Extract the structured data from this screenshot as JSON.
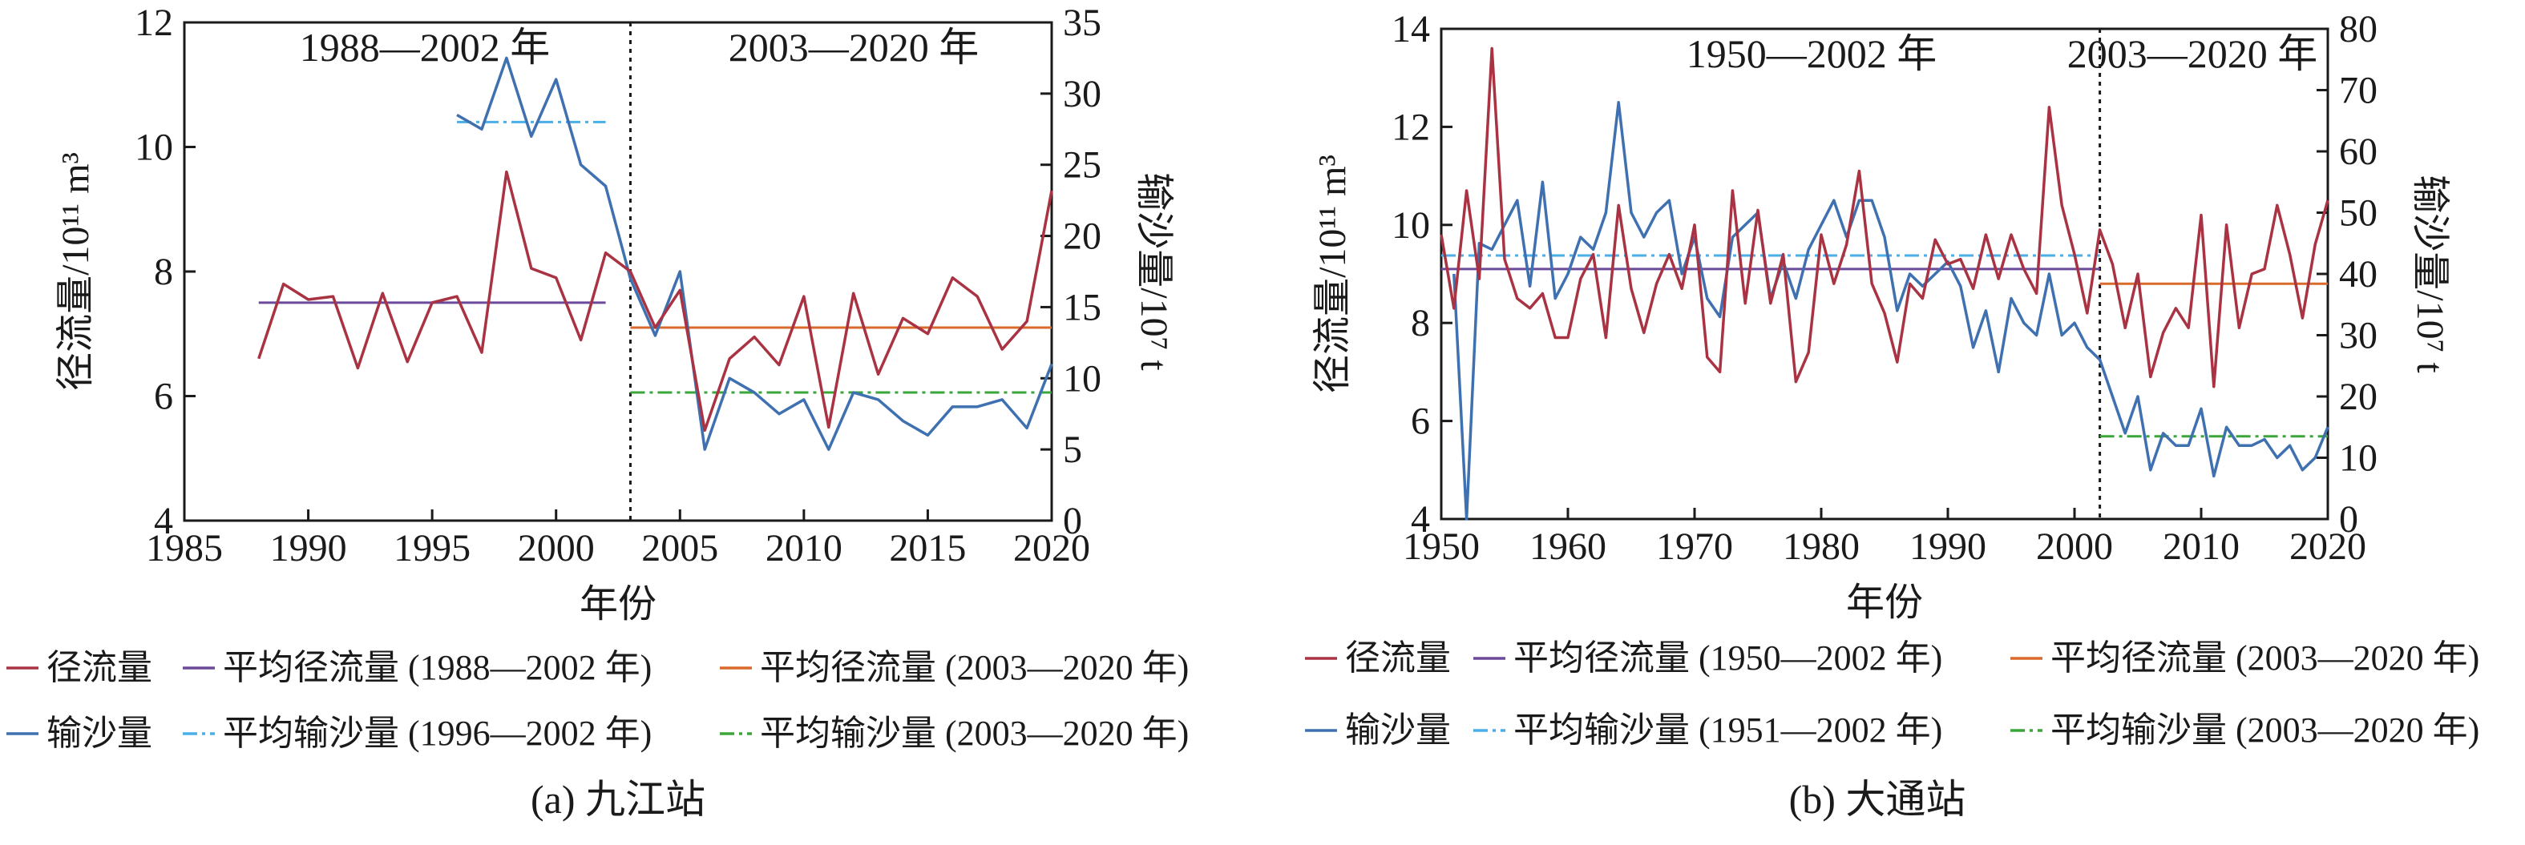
{
  "colors": {
    "runoff": "#a93342",
    "sediment": "#3f70b0",
    "mean_runoff_pre": "#6b4a9c",
    "mean_runoff_post": "#d96a2c",
    "mean_sed_pre": "#4aaee8",
    "mean_sed_post": "#3aa63a",
    "divider": "#1a1a1a"
  },
  "chart_data": [
    {
      "type": "line",
      "caption": "(a) 九江站",
      "xlabel": "年份",
      "ylabel_left": "径流量/10¹¹ m³",
      "ylabel_right": "输沙量/10⁷ t",
      "xlim": [
        1985,
        2020
      ],
      "xticks": [
        1985,
        1990,
        1995,
        2000,
        2005,
        2010,
        2015,
        2020
      ],
      "ylim_left": [
        4,
        12
      ],
      "yticks_left": [
        4,
        6,
        8,
        10,
        12
      ],
      "ylim_right": [
        0,
        35
      ],
      "yticks_right": [
        0,
        5,
        10,
        15,
        20,
        25,
        30,
        35
      ],
      "divider_x": 2003,
      "period_labels": [
        "1988—2002 年",
        "2003—2020 年"
      ],
      "runoff": {
        "name": "径流量",
        "x": [
          1988,
          1989,
          1990,
          1991,
          1992,
          1993,
          1994,
          1995,
          1996,
          1997,
          1998,
          1999,
          2000,
          2001,
          2002,
          2003,
          2004,
          2005,
          2006,
          2007,
          2008,
          2009,
          2010,
          2011,
          2012,
          2013,
          2014,
          2015,
          2016,
          2017,
          2018,
          2019,
          2020
        ],
        "y": [
          6.6,
          7.8,
          7.55,
          7.6,
          6.45,
          7.65,
          6.55,
          7.5,
          7.6,
          6.7,
          9.6,
          8.05,
          7.9,
          6.9,
          8.3,
          8.0,
          7.1,
          7.7,
          5.45,
          6.6,
          6.95,
          6.5,
          7.6,
          5.5,
          7.65,
          6.35,
          7.25,
          7.0,
          7.9,
          7.6,
          6.75,
          7.2,
          9.3
        ]
      },
      "sediment": {
        "name": "输沙量",
        "x": [
          1996,
          1997,
          1998,
          1999,
          2000,
          2001,
          2002,
          2003,
          2004,
          2005,
          2006,
          2007,
          2008,
          2009,
          2010,
          2011,
          2012,
          2013,
          2014,
          2015,
          2016,
          2017,
          2018,
          2019,
          2020
        ],
        "y": [
          28.5,
          27.5,
          32.5,
          27.0,
          31.0,
          25.0,
          23.5,
          17.0,
          13.0,
          17.5,
          5.0,
          10.0,
          9.0,
          7.5,
          8.5,
          5.0,
          9.0,
          8.5,
          7.0,
          6.0,
          8.0,
          8.0,
          8.5,
          6.5,
          11.0
        ]
      },
      "means": [
        {
          "name": "平均径流量 (1988—2002 年)",
          "axis": "left",
          "x": [
            1988,
            2002
          ],
          "value": 7.5
        },
        {
          "name": "平均径流量 (2003—2020 年)",
          "axis": "left",
          "x": [
            2003,
            2020
          ],
          "value": 7.1
        },
        {
          "name": "平均输沙量 (1996—2002 年)",
          "axis": "right",
          "x": [
            1996,
            2002
          ],
          "value": 28.0
        },
        {
          "name": "平均输沙量 (2003—2020 年)",
          "axis": "right",
          "x": [
            2003,
            2020
          ],
          "value": 9.0
        }
      ]
    },
    {
      "type": "line",
      "caption": "(b) 大通站",
      "xlabel": "年份",
      "ylabel_left": "径流量/10¹¹ m³",
      "ylabel_right": "输沙量/10⁷ t",
      "xlim": [
        1950,
        2020
      ],
      "xticks": [
        1950,
        1960,
        1970,
        1980,
        1990,
        2000,
        2010,
        2020
      ],
      "ylim_left": [
        4,
        14
      ],
      "yticks_left": [
        4,
        6,
        8,
        10,
        12,
        14
      ],
      "ylim_right": [
        0,
        80
      ],
      "yticks_right": [
        0,
        10,
        20,
        30,
        40,
        50,
        60,
        70,
        80
      ],
      "divider_x": 2002,
      "period_labels": [
        "1950—2002 年",
        "2003—2020 年"
      ],
      "runoff": {
        "name": "径流量",
        "x": [
          1950,
          1951,
          1952,
          1953,
          1954,
          1955,
          1956,
          1957,
          1958,
          1959,
          1960,
          1961,
          1962,
          1963,
          1964,
          1965,
          1966,
          1967,
          1968,
          1969,
          1970,
          1971,
          1972,
          1973,
          1974,
          1975,
          1976,
          1977,
          1978,
          1979,
          1980,
          1981,
          1982,
          1983,
          1984,
          1985,
          1986,
          1987,
          1988,
          1989,
          1990,
          1991,
          1992,
          1993,
          1994,
          1995,
          1996,
          1997,
          1998,
          1999,
          2000,
          2001,
          2002,
          2003,
          2004,
          2005,
          2006,
          2007,
          2008,
          2009,
          2010,
          2011,
          2012,
          2013,
          2014,
          2015,
          2016,
          2017,
          2018,
          2019,
          2020
        ],
        "y": [
          9.8,
          8.3,
          10.7,
          8.9,
          13.6,
          9.3,
          8.5,
          8.3,
          8.6,
          7.7,
          7.7,
          8.9,
          9.4,
          7.7,
          10.4,
          8.7,
          7.8,
          8.8,
          9.4,
          8.7,
          10.0,
          7.3,
          7.0,
          10.7,
          8.4,
          10.3,
          8.4,
          9.4,
          6.8,
          7.4,
          9.8,
          8.8,
          9.6,
          11.1,
          8.8,
          8.2,
          7.2,
          8.8,
          8.5,
          9.7,
          9.2,
          9.3,
          8.7,
          9.8,
          8.9,
          9.8,
          9.1,
          8.6,
          12.4,
          10.4,
          9.4,
          8.2,
          9.9,
          9.2,
          7.9,
          9.0,
          6.9,
          7.8,
          8.3,
          7.9,
          10.2,
          6.7,
          10.0,
          7.9,
          9.0,
          9.1,
          10.4,
          9.4,
          8.1,
          9.6,
          10.5
        ]
      },
      "sediment": {
        "name": "输沙量",
        "x": [
          1951,
          1952,
          1953,
          1954,
          1955,
          1956,
          1957,
          1958,
          1959,
          1960,
          1961,
          1962,
          1963,
          1964,
          1965,
          1966,
          1967,
          1968,
          1969,
          1970,
          1971,
          1972,
          1973,
          1974,
          1975,
          1976,
          1977,
          1978,
          1979,
          1980,
          1981,
          1982,
          1983,
          1984,
          1985,
          1986,
          1987,
          1988,
          1989,
          1990,
          1991,
          1992,
          1993,
          1994,
          1995,
          1996,
          1997,
          1998,
          1999,
          2000,
          2001,
          2002,
          2003,
          2004,
          2005,
          2006,
          2007,
          2008,
          2009,
          2010,
          2011,
          2012,
          2013,
          2014,
          2015,
          2016,
          2017,
          2018,
          2019,
          2020
        ],
        "y": [
          40,
          0,
          45,
          44,
          48,
          52,
          38,
          55,
          36,
          40,
          46,
          44,
          50,
          68,
          50,
          46,
          50,
          52,
          40,
          46,
          36,
          33,
          46,
          48,
          50,
          36,
          42,
          36,
          44,
          48,
          52,
          46,
          52,
          52,
          46,
          34,
          40,
          38,
          40,
          42,
          38,
          28,
          34,
          24,
          36,
          32,
          30,
          40,
          30,
          32,
          28,
          26,
          20,
          14,
          20,
          8,
          14,
          12,
          12,
          18,
          7,
          15,
          12,
          12,
          13,
          10,
          12,
          8,
          10,
          15
        ]
      },
      "means": [
        {
          "name": "平均径流量 (1950—2002 年)",
          "axis": "left",
          "x": [
            1950,
            2002
          ],
          "value": 9.1
        },
        {
          "name": "平均径流量 (2003—2020 年)",
          "axis": "left",
          "x": [
            2002,
            2020
          ],
          "value": 8.8
        },
        {
          "name": "平均输沙量 (1951—2002 年)",
          "axis": "right",
          "x": [
            1950,
            2002
          ],
          "value": 43.0
        },
        {
          "name": "平均输沙量 (2003—2020 年)",
          "axis": "right",
          "x": [
            2002,
            2020
          ],
          "value": 13.5
        }
      ]
    }
  ]
}
